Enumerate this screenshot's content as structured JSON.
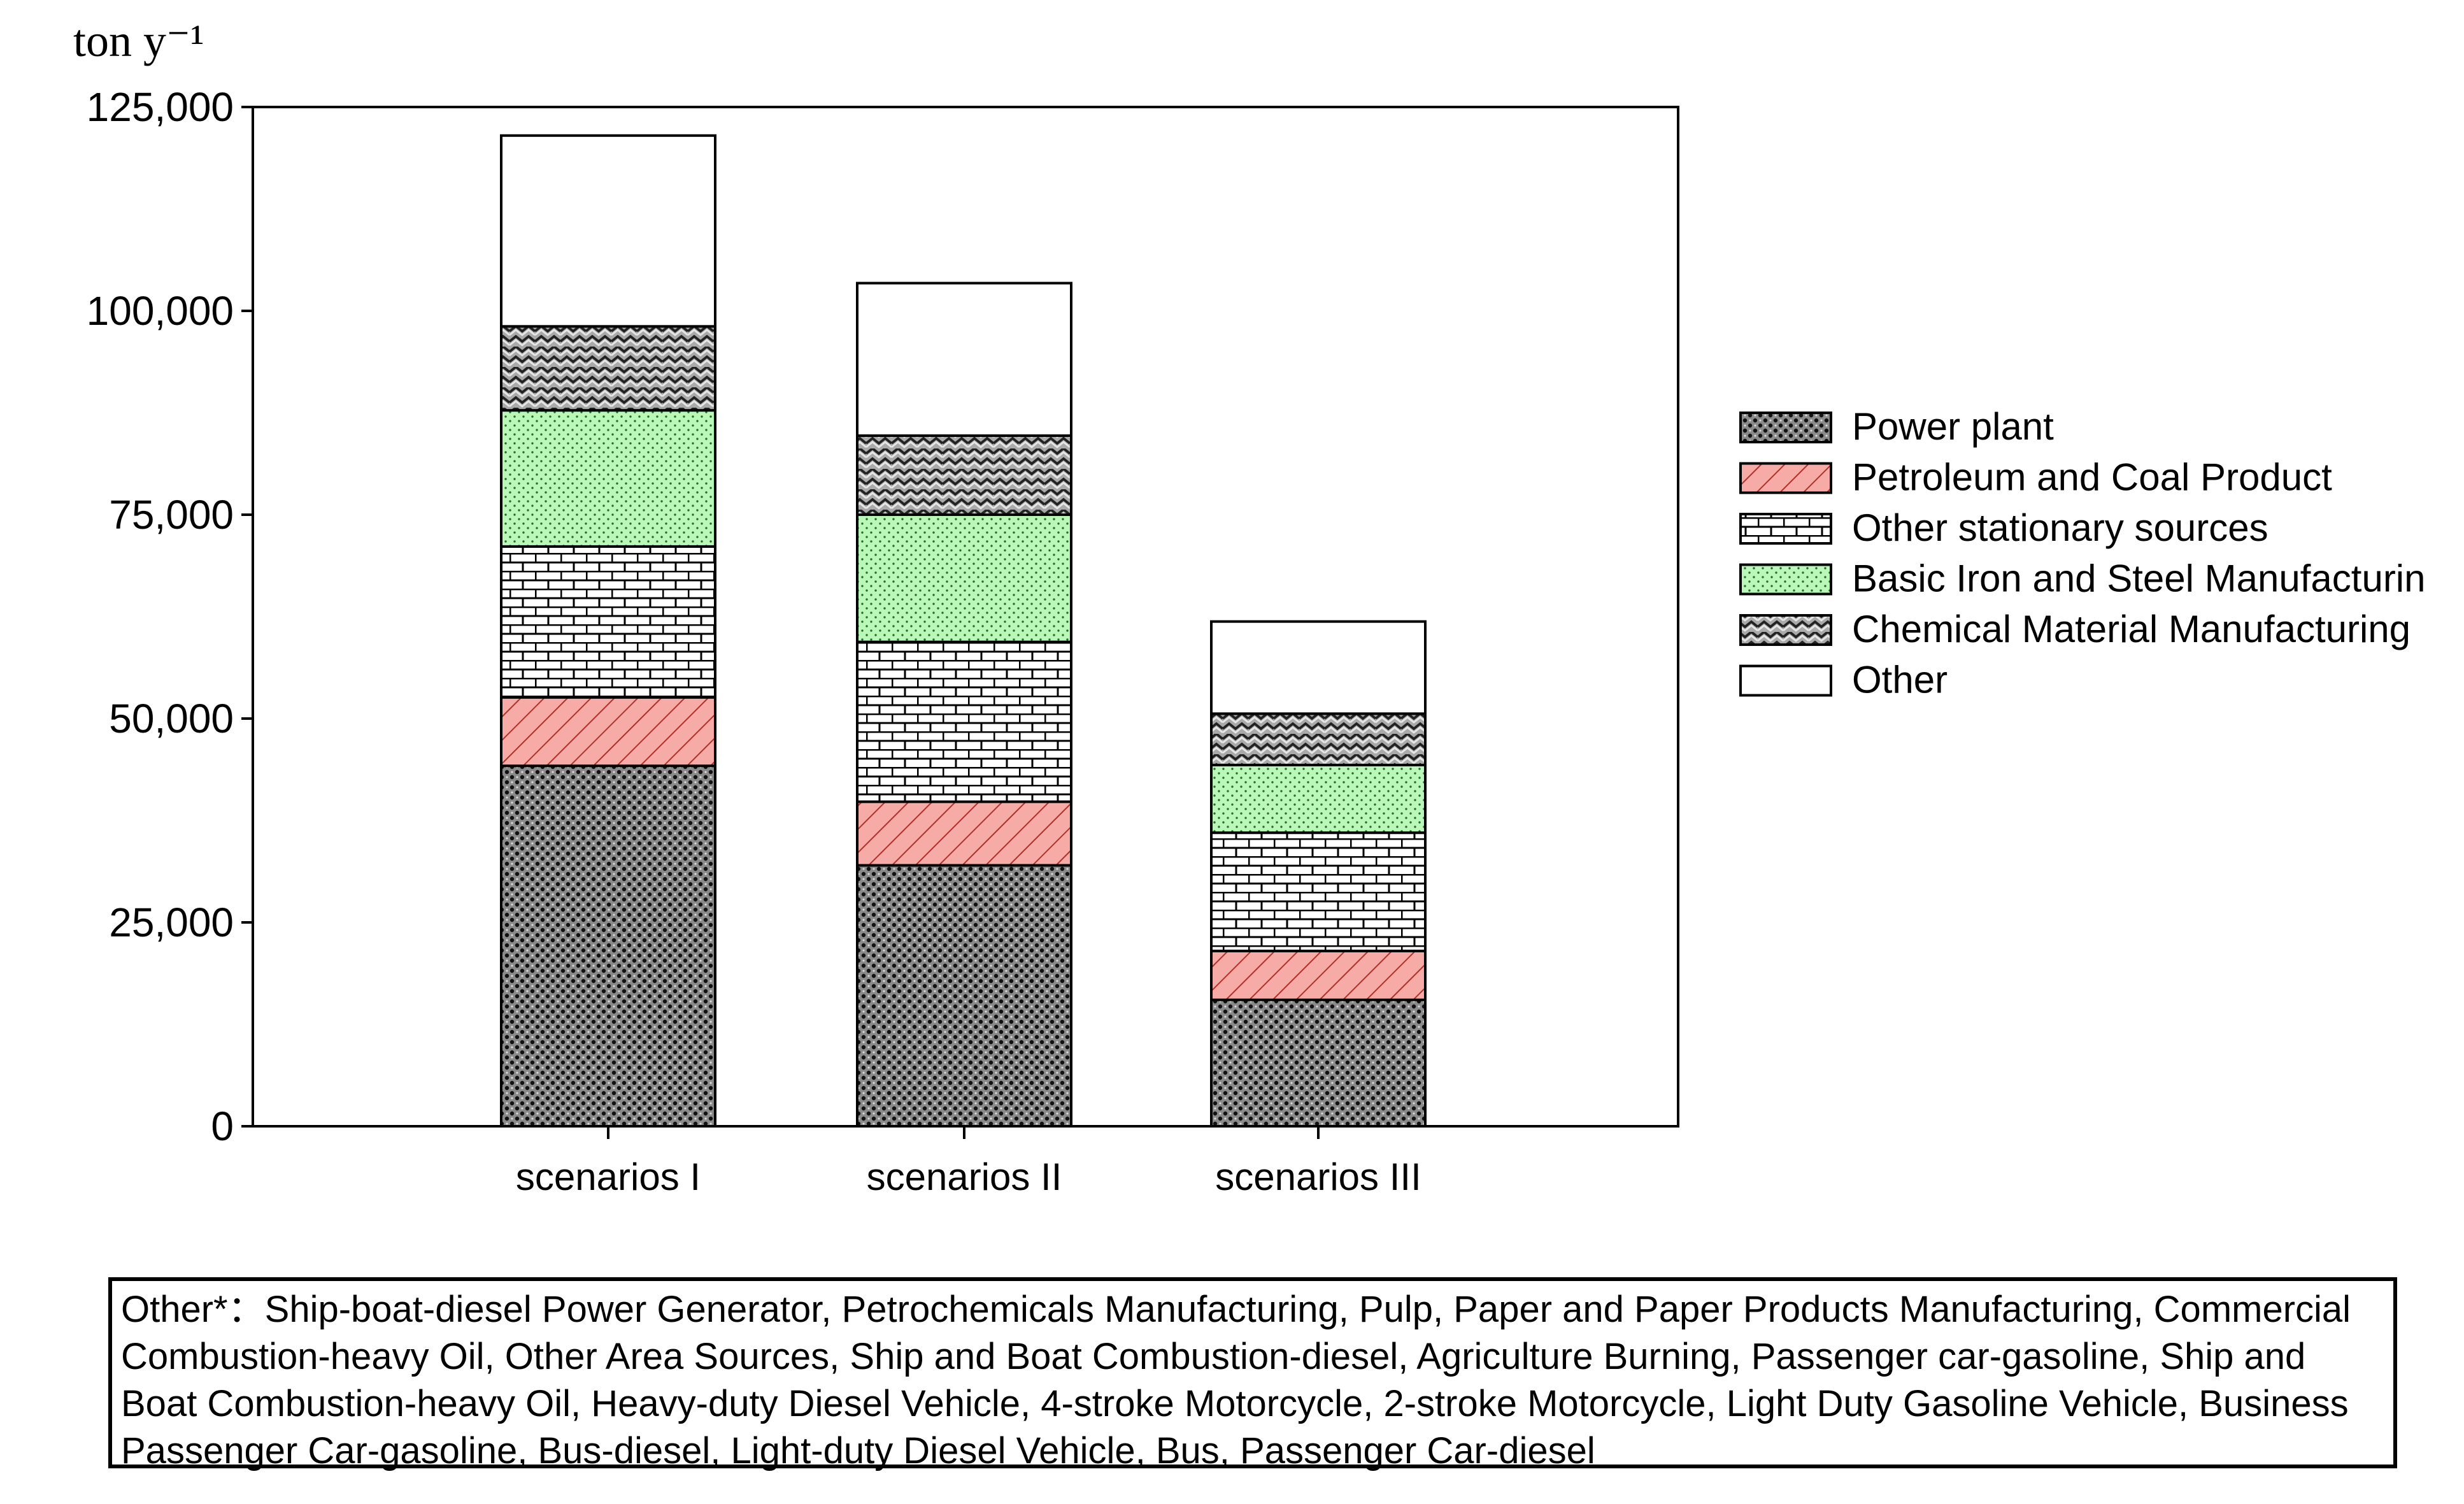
{
  "chart_data": {
    "type": "bar",
    "stacked": true,
    "ylabel": "ton y⁻¹",
    "ylim": [
      0,
      125000
    ],
    "yticks": [
      "0",
      "25,000",
      "50,000",
      "75,000",
      "100,000",
      "125,000"
    ],
    "ytick_values": [
      0,
      25000,
      50000,
      75000,
      100000,
      125000
    ],
    "categories": [
      "scenarios I",
      "scenarios II",
      "scenarios III"
    ],
    "legend_position": "right",
    "series": [
      {
        "name": "Power plant",
        "pattern": "dots",
        "color": "#8c8c8c",
        "values": [
          44200,
          32000,
          15500
        ]
      },
      {
        "name": "Petroleum and Coal Product",
        "pattern": "hatch",
        "color": "#f4a6a0",
        "values": [
          8400,
          7800,
          6000
        ]
      },
      {
        "name": "Other stationary sources",
        "pattern": "brick",
        "color": "#ffffff",
        "values": [
          18500,
          19600,
          14500
        ]
      },
      {
        "name": "Basic Iron and Steel Manufacturin",
        "pattern": "green-dots",
        "color": "#b8f7b8",
        "values": [
          16700,
          15600,
          8300
        ]
      },
      {
        "name": "Chemical Material Manufacturing",
        "pattern": "weave",
        "color": "#a6a6a6",
        "values": [
          10300,
          9700,
          6300
        ]
      },
      {
        "name": "Other",
        "pattern": "none",
        "color": "#ffffff",
        "values": [
          23400,
          18700,
          11300
        ]
      }
    ]
  },
  "note": "Other*：Ship-boat-diesel Power Generator, Petrochemicals Manufacturing, Pulp, Paper and Paper Products Manufacturing, Commercial Combustion-heavy Oil, Other Area Sources, Ship and Boat Combustion-diesel, Agriculture Burning, Passenger car-gasoline, Ship and Boat Combustion-heavy Oil, Heavy-duty Diesel Vehicle, 4-stroke Motorcycle, 2-stroke Motorcycle, Light Duty Gasoline Vehicle, Business Passenger Car-gasoline, Bus-diesel, Light-duty Diesel Vehicle, Bus, Passenger Car-diesel"
}
